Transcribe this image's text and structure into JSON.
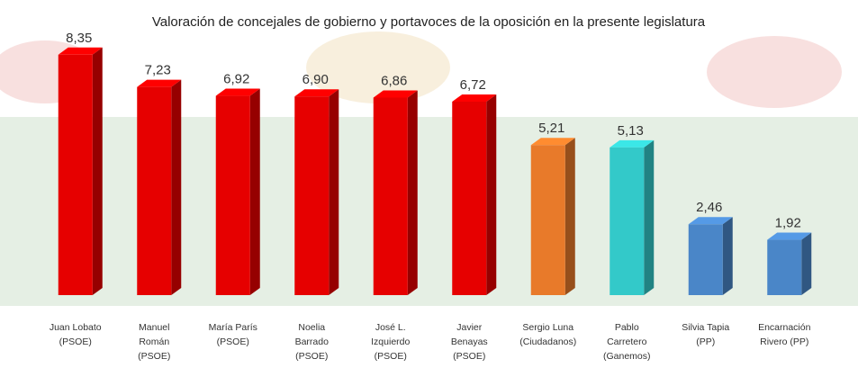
{
  "chart_data": {
    "type": "bar3d",
    "title": "Valoración de concejales de gobierno y portavoces de la oposición en la presente legislatura",
    "categories": [
      "Juan Lobato\n(PSOE)",
      "Manuel\nRomán\n(PSOE)",
      "María París\n(PSOE)",
      "Noelia\nBarrado\n(PSOE)",
      "José L.\nIzquierdo\n(PSOE)",
      "Javier\nBenayas\n(PSOE)",
      "Sergio Luna\n(Ciudadanos)",
      "Pablo\nCarretero\n(Ganemos)",
      "Silvia Tapia\n(PP)",
      "Encarnación\nRivero (PP)"
    ],
    "values": [
      8.35,
      7.23,
      6.92,
      6.9,
      6.86,
      6.72,
      5.21,
      5.13,
      2.46,
      1.92
    ],
    "value_labels": [
      "8,35",
      "7,23",
      "6,92",
      "6,90",
      "6,86",
      "6,72",
      "5,21",
      "5,13",
      "2,46",
      "1,92"
    ],
    "colors": [
      "#e60000",
      "#e60000",
      "#e60000",
      "#e60000",
      "#e60000",
      "#e60000",
      "#e87a2a",
      "#33c9c9",
      "#4a86c8",
      "#4a86c8"
    ],
    "ylim": [
      0,
      9
    ]
  }
}
